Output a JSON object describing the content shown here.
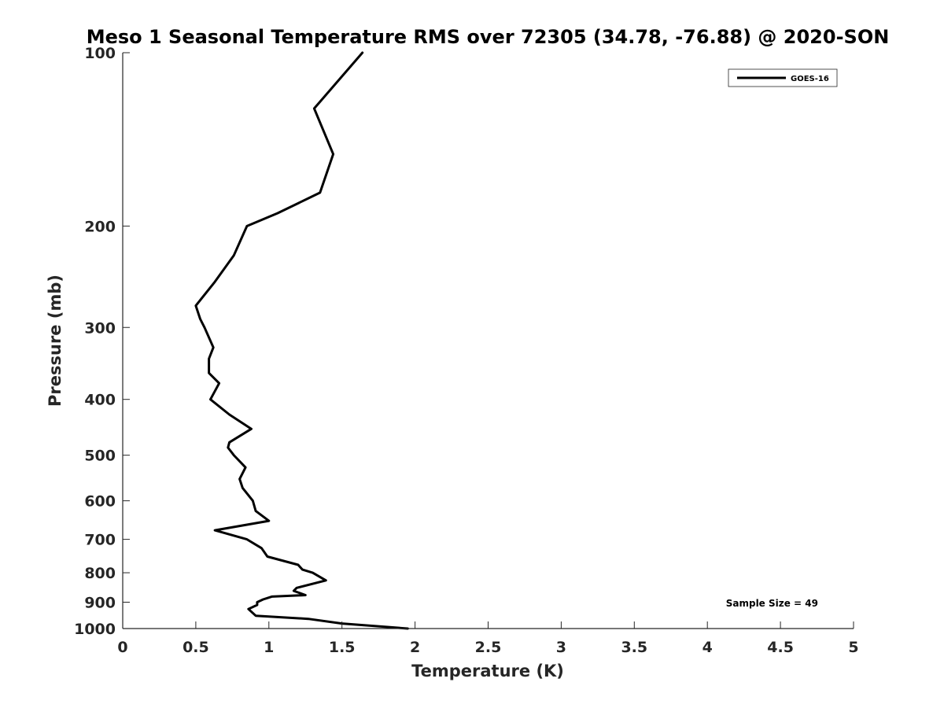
{
  "chart_data": {
    "type": "line",
    "title": "Meso 1 Seasonal Temperature RMS over 72305 (34.78, -76.88) @ 2020-SON",
    "xlabel": "Temperature (K)",
    "ylabel": "Pressure (mb)",
    "xlim": [
      0,
      5
    ],
    "ylim": [
      100,
      1000
    ],
    "yscale": "log",
    "yreversed": true,
    "x_ticks": [
      0,
      0.5,
      1,
      1.5,
      2,
      2.5,
      3,
      3.5,
      4,
      4.5,
      5
    ],
    "x_tick_labels": [
      "0",
      "0.5",
      "1",
      "1.5",
      "2",
      "2.5",
      "3",
      "3.5",
      "4",
      "4.5",
      "5"
    ],
    "y_ticks": [
      100,
      200,
      300,
      400,
      500,
      600,
      700,
      800,
      900,
      1000
    ],
    "y_tick_labels": [
      "100",
      "200",
      "300",
      "400",
      "500",
      "600",
      "700",
      "800",
      "900",
      "1000"
    ],
    "grid": false,
    "legend_position": "top-right",
    "series": [
      {
        "name": "GOES-16",
        "color": "#000000",
        "points": [
          [
            1.64,
            100
          ],
          [
            1.31,
            125
          ],
          [
            1.44,
            150
          ],
          [
            1.35,
            175
          ],
          [
            1.06,
            190
          ],
          [
            0.85,
            200
          ],
          [
            0.76,
            225
          ],
          [
            0.63,
            250
          ],
          [
            0.5,
            275
          ],
          [
            0.53,
            290
          ],
          [
            0.56,
            300
          ],
          [
            0.62,
            325
          ],
          [
            0.59,
            340
          ],
          [
            0.59,
            360
          ],
          [
            0.66,
            375
          ],
          [
            0.6,
            400
          ],
          [
            0.73,
            425
          ],
          [
            0.88,
            450
          ],
          [
            0.73,
            475
          ],
          [
            0.72,
            485
          ],
          [
            0.76,
            500
          ],
          [
            0.84,
            525
          ],
          [
            0.8,
            550
          ],
          [
            0.82,
            570
          ],
          [
            0.89,
            600
          ],
          [
            0.91,
            625
          ],
          [
            1.0,
            650
          ],
          [
            0.63,
            675
          ],
          [
            0.85,
            700
          ],
          [
            0.95,
            725
          ],
          [
            0.99,
            750
          ],
          [
            1.2,
            775
          ],
          [
            1.23,
            790
          ],
          [
            1.3,
            800
          ],
          [
            1.39,
            825
          ],
          [
            1.19,
            850
          ],
          [
            1.17,
            860
          ],
          [
            1.25,
            875
          ],
          [
            1.02,
            880
          ],
          [
            0.96,
            890
          ],
          [
            0.92,
            900
          ],
          [
            0.92,
            910
          ],
          [
            0.86,
            925
          ],
          [
            0.91,
            950
          ],
          [
            1.27,
            962
          ],
          [
            1.5,
            980
          ],
          [
            1.95,
            1000
          ]
        ]
      }
    ],
    "annotations": [
      "Sample Size = 49"
    ]
  }
}
